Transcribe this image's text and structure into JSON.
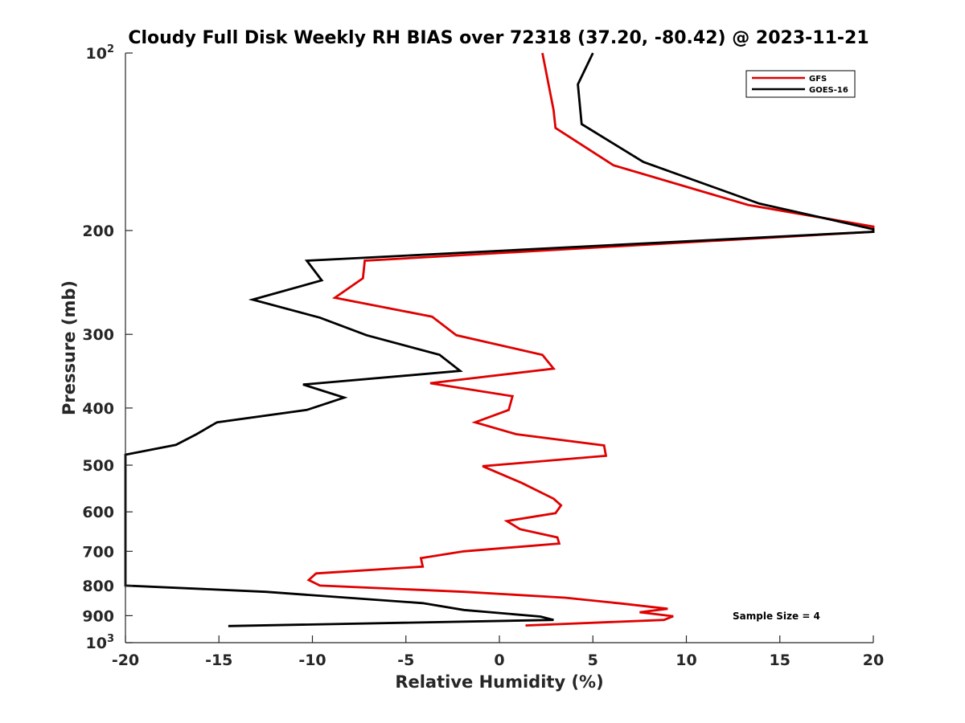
{
  "chart_data": {
    "type": "line",
    "title": "Cloudy Full Disk Weekly RH BIAS over 72318 (37.20, -80.42) @ 2023-11-21",
    "xlabel": "Relative Humidity (%)",
    "ylabel": "Pressure (mb)",
    "xlim": [
      -20,
      20
    ],
    "ylim": [
      100,
      1000
    ],
    "yscale": "log",
    "y_reversed": true,
    "x_ticks": [
      {
        "value": -20,
        "label": "-20"
      },
      {
        "value": -15,
        "label": "-15"
      },
      {
        "value": -10,
        "label": "-10"
      },
      {
        "value": -5,
        "label": "-5"
      },
      {
        "value": 0,
        "label": "0"
      },
      {
        "value": 5,
        "label": "5"
      },
      {
        "value": 10,
        "label": "10"
      },
      {
        "value": 15,
        "label": "15"
      },
      {
        "value": 20,
        "label": "20"
      }
    ],
    "y_ticks": [
      {
        "value": 100,
        "label": "10",
        "sup": "2"
      },
      {
        "value": 200,
        "label": "200"
      },
      {
        "value": 300,
        "label": "300"
      },
      {
        "value": 400,
        "label": "400"
      },
      {
        "value": 500,
        "label": "500"
      },
      {
        "value": 600,
        "label": "600"
      },
      {
        "value": 700,
        "label": "700"
      },
      {
        "value": 800,
        "label": "800"
      },
      {
        "value": 900,
        "label": "900"
      },
      {
        "value": 1000,
        "label": "10",
        "sup": "3"
      }
    ],
    "grid": false,
    "legend_position": "top-right",
    "annotation": "Sample Size = 4",
    "series": [
      {
        "name": "GFS",
        "color": "#e00000",
        "points": [
          [
            2.3,
            100
          ],
          [
            2.9,
            125
          ],
          [
            3.0,
            134
          ],
          [
            6.1,
            155
          ],
          [
            13.3,
            181
          ],
          [
            20.0,
            197
          ],
          [
            20.0,
            201
          ],
          [
            -7.2,
            225
          ],
          [
            -7.3,
            241
          ],
          [
            -8.8,
            260
          ],
          [
            -3.6,
            280
          ],
          [
            -2.3,
            301
          ],
          [
            2.3,
            325
          ],
          [
            2.9,
            343
          ],
          [
            -3.7,
            363
          ],
          [
            0.7,
            382
          ],
          [
            0.5,
            403
          ],
          [
            -1.3,
            423
          ],
          [
            0.9,
            443
          ],
          [
            5.6,
            463
          ],
          [
            5.7,
            482
          ],
          [
            -0.9,
            502
          ],
          [
            1.2,
            536
          ],
          [
            2.9,
            570
          ],
          [
            3.3,
            585
          ],
          [
            3.0,
            603
          ],
          [
            0.4,
            622
          ],
          [
            1.1,
            642
          ],
          [
            3.1,
            663
          ],
          [
            3.2,
            679
          ],
          [
            -1.9,
            700
          ],
          [
            -4.2,
            719
          ],
          [
            -4.1,
            743
          ],
          [
            -9.8,
            763
          ],
          [
            -10.2,
            783
          ],
          [
            -9.6,
            800
          ],
          [
            -1.9,
            820
          ],
          [
            3.5,
            839
          ],
          [
            6.5,
            858
          ],
          [
            9.0,
            876
          ],
          [
            7.5,
            888
          ],
          [
            9.3,
            902
          ],
          [
            8.8,
            915
          ],
          [
            1.4,
            935
          ]
        ]
      },
      {
        "name": "GOES-16",
        "color": "#000000",
        "points": [
          [
            5.0,
            100
          ],
          [
            4.2,
            113
          ],
          [
            4.4,
            132
          ],
          [
            7.7,
            153
          ],
          [
            13.9,
            180
          ],
          [
            20.0,
            199
          ],
          [
            20.0,
            201
          ],
          [
            -10.3,
            225
          ],
          [
            -9.5,
            243
          ],
          [
            -13.2,
            262
          ],
          [
            -9.6,
            281
          ],
          [
            -7.1,
            301
          ],
          [
            -3.2,
            325
          ],
          [
            -2.1,
            346
          ],
          [
            -10.5,
            365
          ],
          [
            -8.3,
            384
          ],
          [
            -10.3,
            403
          ],
          [
            -15.1,
            423
          ],
          [
            -16.2,
            443
          ],
          [
            -17.3,
            462
          ],
          [
            -20.0,
            480
          ],
          [
            -20.0,
            800
          ],
          [
            -12.5,
            820
          ],
          [
            -4.1,
            857
          ],
          [
            -1.9,
            880
          ],
          [
            2.2,
            903
          ],
          [
            2.9,
            915
          ],
          [
            -14.5,
            937
          ]
        ]
      }
    ]
  }
}
